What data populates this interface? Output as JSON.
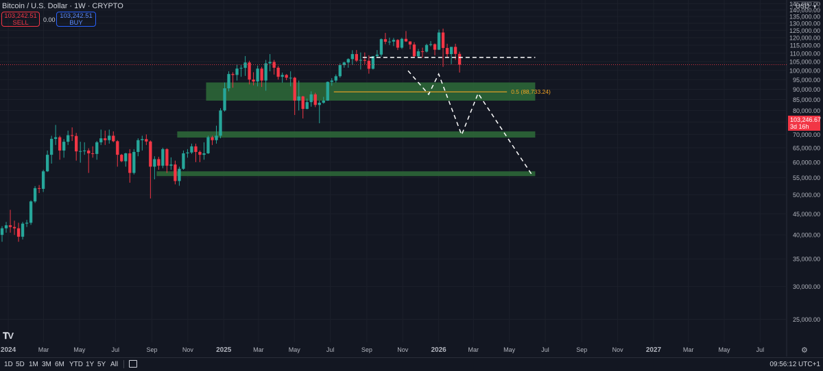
{
  "header": {
    "title": "Bitcoin / U.S. Dollar · 1W · CRYPTO",
    "sell_price": "103,242.51",
    "sell_label": "SELL",
    "spread": "0.00",
    "buy_price": "103,242.51",
    "buy_label": "BUY"
  },
  "currency": "USD",
  "current_price": {
    "value": "103,246.67",
    "countdown": "3d 16h"
  },
  "bottom_bar": {
    "ranges": [
      "1D",
      "5D",
      "1M",
      "3M",
      "6M",
      "YTD",
      "1Y",
      "5Y",
      "All"
    ],
    "clock": "09:56:12 UTC+1"
  },
  "colors": {
    "up": "#26a69a",
    "down": "#f23645",
    "zone": "#2e6b38",
    "fib": "#f5a623",
    "projection": "#ffffff",
    "background": "#131722"
  },
  "icons": [
    "tradingview-logo-icon",
    "calendar-icon",
    "settings-gear-icon"
  ],
  "chart_data": {
    "type": "candlestick",
    "title": "Bitcoin / U.S. Dollar · 1W · CRYPTO",
    "y_axis": {
      "scale": "log",
      "range": [
        22000,
        148000
      ],
      "ticks": [
        25000,
        30000,
        35000,
        40000,
        45000,
        50000,
        55000,
        60000,
        65000,
        70000,
        75000,
        80000,
        85000,
        90000,
        95000,
        100000,
        105000,
        110000,
        115000,
        120000,
        125000,
        130000,
        135000,
        140000,
        145000
      ],
      "tick_labels": [
        "25,000.00",
        "30,000.00",
        "35,000.00",
        "40,000.00",
        "45,000.00",
        "50,000.00",
        "55,000.00",
        "60,000.00",
        "65,000.00",
        "70,000.00",
        "75,000.00",
        "80,000.00",
        "85,000.00",
        "90,000.00",
        "95,000.00",
        "100,000.00",
        "105,000.00",
        "110,000.00",
        "115,000.00",
        "120,000.00",
        "125,000.00",
        "130,000.00",
        "135,000.00",
        "140,000.00",
        "145,000.00"
      ]
    },
    "x_axis": {
      "range": [
        "2023-12-18",
        "2027-08-15"
      ],
      "ticks": [
        {
          "date": "2024-01-01",
          "label": "2024",
          "bold": true
        },
        {
          "date": "2024-03-01",
          "label": "Mar"
        },
        {
          "date": "2024-05-01",
          "label": "May"
        },
        {
          "date": "2024-07-01",
          "label": "Jul"
        },
        {
          "date": "2024-09-01",
          "label": "Sep"
        },
        {
          "date": "2024-11-01",
          "label": "Nov"
        },
        {
          "date": "2025-01-01",
          "label": "2025",
          "bold": true
        },
        {
          "date": "2025-03-01",
          "label": "Mar"
        },
        {
          "date": "2025-05-01",
          "label": "May"
        },
        {
          "date": "2025-07-01",
          "label": "Jul"
        },
        {
          "date": "2025-09-01",
          "label": "Sep"
        },
        {
          "date": "2025-11-01",
          "label": "Nov"
        },
        {
          "date": "2026-01-01",
          "label": "2026",
          "bold": true
        },
        {
          "date": "2026-03-01",
          "label": "Mar"
        },
        {
          "date": "2026-05-01",
          "label": "May"
        },
        {
          "date": "2026-07-01",
          "label": "Jul"
        },
        {
          "date": "2026-09-01",
          "label": "Sep"
        },
        {
          "date": "2026-11-01",
          "label": "Nov"
        },
        {
          "date": "2027-01-01",
          "label": "2027",
          "bold": true
        },
        {
          "date": "2027-03-01",
          "label": "Mar"
        },
        {
          "date": "2027-05-01",
          "label": "May"
        },
        {
          "date": "2027-07-01",
          "label": "Jul"
        }
      ]
    },
    "candles_start": "2023-12-18",
    "candle_interval_days": 7,
    "candles": [
      [
        40000,
        42000,
        38500,
        41500
      ],
      [
        41500,
        43000,
        40500,
        42200
      ],
      [
        42200,
        46000,
        40500,
        41800
      ],
      [
        41800,
        43300,
        40000,
        41500
      ],
      [
        41500,
        42800,
        38500,
        39600
      ],
      [
        39600,
        43000,
        39000,
        42600
      ],
      [
        42600,
        43500,
        41800,
        42800
      ],
      [
        42800,
        48500,
        42300,
        48200
      ],
      [
        48200,
        52500,
        47800,
        51900
      ],
      [
        51900,
        52800,
        50500,
        51700
      ],
      [
        51700,
        57500,
        50800,
        57000
      ],
      [
        57000,
        64000,
        56800,
        62500
      ],
      [
        62500,
        69500,
        59500,
        68300
      ],
      [
        68300,
        73800,
        66000,
        68900
      ],
      [
        68900,
        69500,
        60800,
        64000
      ],
      [
        64000,
        68200,
        61500,
        67200
      ],
      [
        67200,
        71500,
        66000,
        69700
      ],
      [
        69700,
        72800,
        67500,
        69400
      ],
      [
        69400,
        70600,
        60500,
        63700
      ],
      [
        63700,
        67200,
        59800,
        63800
      ],
      [
        63800,
        67000,
        62500,
        64000
      ],
      [
        64000,
        64800,
        56500,
        63000
      ],
      [
        63000,
        65500,
        61500,
        62800
      ],
      [
        62800,
        67500,
        60800,
        67000
      ],
      [
        67000,
        71900,
        66000,
        68500
      ],
      [
        68500,
        71500,
        66000,
        67800
      ],
      [
        67800,
        71900,
        66500,
        69500
      ],
      [
        69500,
        71200,
        67000,
        67400
      ],
      [
        67400,
        67800,
        58500,
        62500
      ],
      [
        62500,
        62800,
        60000,
        60300
      ],
      [
        60300,
        63200,
        58500,
        63000
      ],
      [
        63000,
        64500,
        53500,
        56500
      ],
      [
        56500,
        64500,
        56000,
        63500
      ],
      [
        63500,
        68500,
        62000,
        67800
      ],
      [
        67800,
        69500,
        64000,
        68200
      ],
      [
        68200,
        70000,
        66000,
        67300
      ],
      [
        67300,
        67700,
        49000,
        58500
      ],
      [
        58500,
        62000,
        54500,
        61000
      ],
      [
        61000,
        61800,
        57500,
        58800
      ],
      [
        58800,
        65000,
        58000,
        64500
      ],
      [
        64500,
        64800,
        56500,
        58800
      ],
      [
        58800,
        61600,
        57500,
        59200
      ],
      [
        59200,
        60500,
        53000,
        54000
      ],
      [
        54000,
        58500,
        52600,
        57800
      ],
      [
        57800,
        64000,
        57500,
        63000
      ],
      [
        63000,
        64500,
        61500,
        63300
      ],
      [
        63300,
        66500,
        62800,
        65500
      ],
      [
        65500,
        66500,
        60000,
        63500
      ],
      [
        63500,
        64000,
        60000,
        62500
      ],
      [
        62500,
        67000,
        60800,
        63000
      ],
      [
        63000,
        69500,
        62800,
        68900
      ],
      [
        68900,
        69500,
        66000,
        67800
      ],
      [
        67800,
        73500,
        66500,
        69500
      ],
      [
        69500,
        81000,
        68500,
        80000
      ],
      [
        80000,
        93500,
        79500,
        90500
      ],
      [
        90500,
        99500,
        89000,
        98000
      ],
      [
        98000,
        99000,
        90800,
        97500
      ],
      [
        97500,
        103500,
        94500,
        101000
      ],
      [
        101000,
        103000,
        96500,
        101400
      ],
      [
        101400,
        108300,
        97000,
        104500
      ],
      [
        104500,
        105500,
        92500,
        95000
      ],
      [
        95000,
        99000,
        92000,
        94000
      ],
      [
        94000,
        102700,
        91500,
        101000
      ],
      [
        101000,
        102000,
        91200,
        94500
      ],
      [
        94500,
        106000,
        89300,
        104000
      ],
      [
        104000,
        109500,
        99500,
        104800
      ],
      [
        104800,
        106000,
        97700,
        101500
      ],
      [
        101500,
        102500,
        95000,
        96500
      ],
      [
        96500,
        98800,
        93400,
        97500
      ],
      [
        97500,
        98000,
        94700,
        96000
      ],
      [
        96000,
        99500,
        91500,
        96000
      ],
      [
        96000,
        96500,
        78000,
        84500
      ],
      [
        84500,
        94500,
        80000,
        86500
      ],
      [
        86500,
        86800,
        76500,
        80700
      ],
      [
        80700,
        85500,
        80500,
        83800
      ],
      [
        83800,
        89000,
        81700,
        87500
      ],
      [
        87500,
        88300,
        81500,
        82500
      ],
      [
        82500,
        84500,
        74500,
        83500
      ],
      [
        83500,
        86300,
        83100,
        84500
      ],
      [
        84500,
        94000,
        84400,
        93800
      ],
      [
        93800,
        95800,
        91800,
        94500
      ],
      [
        94500,
        97800,
        93400,
        96800
      ],
      [
        96800,
        104000,
        96000,
        103000
      ],
      [
        103000,
        105000,
        101500,
        104500
      ],
      [
        104500,
        107000,
        101500,
        106500
      ],
      [
        106500,
        111900,
        103000,
        109500
      ],
      [
        109500,
        112000,
        104800,
        105600
      ],
      [
        105600,
        110500,
        100500,
        106000
      ],
      [
        106000,
        110500,
        103500,
        105500
      ],
      [
        105500,
        108800,
        98200,
        100900
      ],
      [
        100900,
        108000,
        100500,
        108300
      ],
      [
        108300,
        112000,
        107300,
        109200
      ],
      [
        109200,
        119500,
        108000,
        119000
      ],
      [
        119000,
        123200,
        115700,
        117300
      ],
      [
        117300,
        120000,
        115200,
        117400
      ],
      [
        117400,
        119800,
        114500,
        118500
      ],
      [
        118500,
        119000,
        112000,
        113500
      ],
      [
        113500,
        120000,
        112700,
        119200
      ],
      [
        119200,
        124500,
        117200,
        117500
      ],
      [
        117500,
        117600,
        112500,
        115500
      ],
      [
        115500,
        117000,
        107500,
        108200
      ],
      [
        108200,
        112700,
        107400,
        111200
      ],
      [
        111200,
        113500,
        107300,
        111000
      ],
      [
        111000,
        116000,
        110500,
        115200
      ],
      [
        115200,
        117700,
        114300,
        115700
      ],
      [
        115700,
        116200,
        108700,
        112200
      ],
      [
        112200,
        125500,
        112000,
        123500
      ],
      [
        123500,
        126200,
        102000,
        113300
      ],
      [
        113300,
        116000,
        107500,
        109500
      ],
      [
        109500,
        114000,
        103500,
        114000
      ],
      [
        114000,
        116000,
        106000,
        109600
      ],
      [
        109600,
        111000,
        98800,
        103250
      ]
    ],
    "horizontal_ray": {
      "price": 107500,
      "from_date": "2025-08-25",
      "to_date": "2026-06-14"
    },
    "zones": [
      {
        "low": 84500,
        "high": 93500,
        "from_date": "2024-12-02",
        "to_date": "2026-06-14"
      },
      {
        "low": 68800,
        "high": 71200,
        "from_date": "2024-10-14",
        "to_date": "2026-06-14"
      },
      {
        "low": 55500,
        "high": 57000,
        "from_date": "2024-09-09",
        "to_date": "2026-06-14"
      }
    ],
    "fib_level": {
      "label": "0.5 (88,733.24)",
      "price": 88733.24,
      "from_date": "2025-07-07",
      "to_date": "2026-04-27"
    },
    "projection_path": [
      [
        "2025-11-10",
        99800
      ],
      [
        "2025-12-15",
        87500
      ],
      [
        "2026-01-01",
        98000
      ],
      [
        "2026-02-09",
        69800
      ],
      [
        "2026-03-09",
        88000
      ],
      [
        "2026-06-08",
        56000
      ]
    ]
  }
}
